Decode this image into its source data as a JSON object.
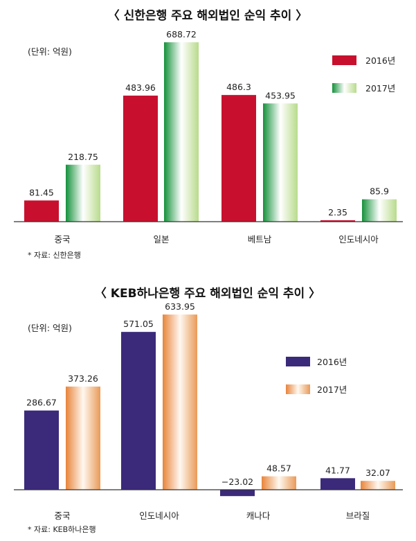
{
  "chart_data": [
    {
      "type": "bar",
      "title": "〈 신한은행 주요 해외법인 순익 추이 〉",
      "unit": "(단위: 억원)",
      "source": "* 자료: 신한은행",
      "categories": [
        "중국",
        "일본",
        "베트남",
        "인도네시아"
      ],
      "series": [
        {
          "name": "2016년",
          "values": [
            81.45,
            483.96,
            486.3,
            2.35
          ],
          "labels": [
            "81.45",
            "483.96",
            "486.3",
            "2.35"
          ],
          "color": "#c8102e"
        },
        {
          "name": "2017년",
          "values": [
            218.75,
            688.72,
            453.95,
            85.9
          ],
          "labels": [
            "218.75",
            "688.72",
            "453.95",
            "85.9"
          ],
          "color": [
            "#14913a",
            "#ffffff",
            "#b8db8c"
          ]
        }
      ],
      "legend": "right",
      "grid": false
    },
    {
      "type": "bar",
      "title": "〈 KEB하나은행 주요 해외법인 순익 추이 〉",
      "unit": "(단위: 억원)",
      "source": "* 자료: KEB하나은행",
      "categories": [
        "중국",
        "인도네시아",
        "캐나다",
        "브라질"
      ],
      "series": [
        {
          "name": "2016년",
          "values": [
            286.67,
            571.05,
            -23.02,
            41.77
          ],
          "labels": [
            "286.67",
            "571.05",
            "−23.02",
            "41.77"
          ],
          "color": "#3b2a7a"
        },
        {
          "name": "2017년",
          "values": [
            373.26,
            633.95,
            48.57,
            32.07
          ],
          "labels": [
            "373.26",
            "633.95",
            "48.57",
            "32.07"
          ],
          "color": [
            "#e8843a",
            "#ffffff",
            "#e99a58"
          ]
        }
      ],
      "legend": "right",
      "grid": false
    }
  ]
}
